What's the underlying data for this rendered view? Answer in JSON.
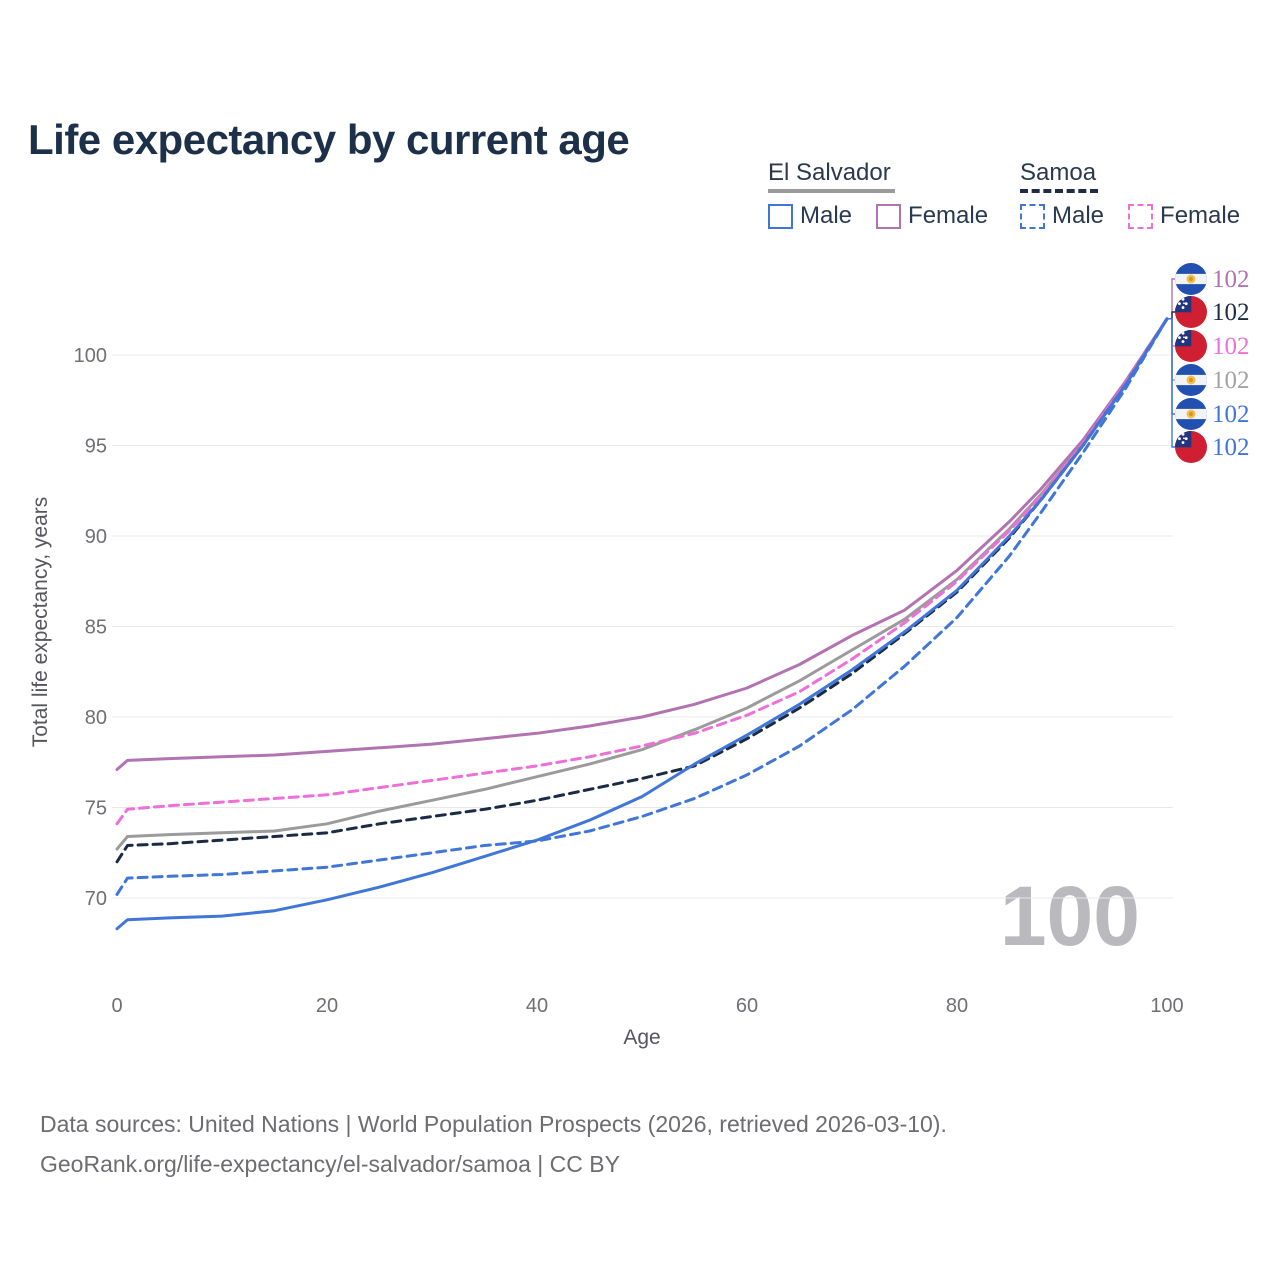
{
  "title": "Life expectancy by current age",
  "watermark": "100",
  "legend": {
    "groups": [
      {
        "label": "El Salvador",
        "color": "#9b9b9b",
        "dash": false,
        "items": [
          {
            "label": "Male",
            "color": "#4076d8",
            "dash": false
          },
          {
            "label": "Female",
            "color": "#b173b1",
            "dash": false
          }
        ]
      },
      {
        "label": "Samoa",
        "color": "#1e2d44",
        "dash": true,
        "items": [
          {
            "label": "Male",
            "color": "#4076d8",
            "dash": true
          },
          {
            "label": "Female",
            "color": "#ef6fd8",
            "dash": true
          }
        ]
      }
    ]
  },
  "chart_data": {
    "type": "line",
    "title": "Life expectancy by current age",
    "xlabel": "Age",
    "ylabel": "Total life expectancy, years",
    "x_ticks": [
      0,
      20,
      40,
      60,
      80,
      100
    ],
    "y_ticks": [
      70,
      75,
      80,
      85,
      90,
      95,
      100
    ],
    "xlim": [
      0,
      100
    ],
    "ylim": [
      67,
      103
    ],
    "grid": true,
    "legend_position": "top-right",
    "ages": [
      0,
      1,
      5,
      10,
      15,
      20,
      25,
      30,
      35,
      40,
      45,
      50,
      55,
      60,
      65,
      70,
      75,
      80,
      85,
      88,
      92,
      96,
      100
    ],
    "series": [
      {
        "id": "el-salvador-both",
        "name": "El Salvador Both sexes",
        "country": "El Salvador",
        "sex": "Both",
        "color": "#9b9b9b",
        "dash": false,
        "values": [
          72.7,
          73.4,
          73.5,
          73.6,
          73.7,
          74.1,
          74.8,
          75.4,
          76.0,
          76.7,
          77.4,
          78.2,
          79.3,
          80.5,
          82.0,
          83.7,
          85.4,
          87.6,
          90.4,
          92.3,
          95.1,
          98.4,
          102
        ]
      },
      {
        "id": "el-salvador-female",
        "name": "El Salvador Female",
        "country": "El Salvador",
        "sex": "Female",
        "color": "#b173b1",
        "dash": false,
        "values": [
          77.1,
          77.6,
          77.7,
          77.8,
          77.9,
          78.1,
          78.3,
          78.5,
          78.8,
          79.1,
          79.5,
          80.0,
          80.7,
          81.6,
          82.9,
          84.5,
          85.9,
          88.1,
          90.8,
          92.6,
          95.3,
          98.5,
          102
        ]
      },
      {
        "id": "samoa-female",
        "name": "Samoa Female",
        "country": "Samoa",
        "sex": "Female",
        "color": "#ef6fd8",
        "dash": true,
        "values": [
          74.1,
          74.9,
          75.1,
          75.3,
          75.5,
          75.7,
          76.1,
          76.5,
          76.9,
          77.3,
          77.8,
          78.4,
          79.1,
          80.1,
          81.4,
          83.2,
          85.2,
          87.5,
          90.3,
          92.2,
          95.1,
          98.4,
          102
        ]
      },
      {
        "id": "samoa-both",
        "name": "Samoa Both sexes",
        "country": "Samoa",
        "sex": "Both",
        "color": "#1b2b45",
        "dash": true,
        "values": [
          72.0,
          72.9,
          73.0,
          73.2,
          73.4,
          73.6,
          74.1,
          74.5,
          74.9,
          75.4,
          76.0,
          76.6,
          77.3,
          78.8,
          80.5,
          82.4,
          84.6,
          86.9,
          89.9,
          92.0,
          95.0,
          98.3,
          102
        ]
      },
      {
        "id": "samoa-male",
        "name": "Samoa Male",
        "country": "Samoa",
        "sex": "Male",
        "color": "#4076d8",
        "dash": true,
        "values": [
          70.2,
          71.1,
          71.2,
          71.3,
          71.5,
          71.7,
          72.1,
          72.5,
          72.9,
          73.15,
          73.7,
          74.5,
          75.5,
          76.8,
          78.4,
          80.4,
          82.8,
          85.5,
          88.9,
          91.3,
          94.6,
          98.1,
          102
        ]
      },
      {
        "id": "el-salvador-male",
        "name": "El Salvador Male",
        "country": "El Salvador",
        "sex": "Male",
        "color": "#4076d8",
        "dash": false,
        "values": [
          68.3,
          68.8,
          68.9,
          69.0,
          69.3,
          69.9,
          70.6,
          71.4,
          72.3,
          73.2,
          74.3,
          75.6,
          77.4,
          79.0,
          80.7,
          82.6,
          84.7,
          87.0,
          90.0,
          92.0,
          95.0,
          98.3,
          102
        ]
      }
    ],
    "end_labels": [
      {
        "text": "102",
        "flag": "el-salvador",
        "color": "#b173b1",
        "series": "El Salvador Female"
      },
      {
        "text": "102",
        "flag": "samoa",
        "color": "#1e2d44",
        "series": "Samoa Both sexes"
      },
      {
        "text": "102",
        "flag": "samoa",
        "color": "#ef6fd8",
        "series": "Samoa Female"
      },
      {
        "text": "102",
        "flag": "el-salvador",
        "color": "#a3a3a7",
        "series": "El Salvador Both sexes"
      },
      {
        "text": "102",
        "flag": "el-salvador",
        "color": "#4076d8",
        "series": "El Salvador Male"
      },
      {
        "text": "102",
        "flag": "samoa",
        "color": "#4076d8",
        "series": "Samoa Male"
      }
    ]
  },
  "footer": {
    "line1": "Data sources: United Nations | World Population Prospects (2026, retrieved 2026-03-10).",
    "line2": "GeoRank.org/life-expectancy/el-salvador/samoa | CC BY"
  }
}
